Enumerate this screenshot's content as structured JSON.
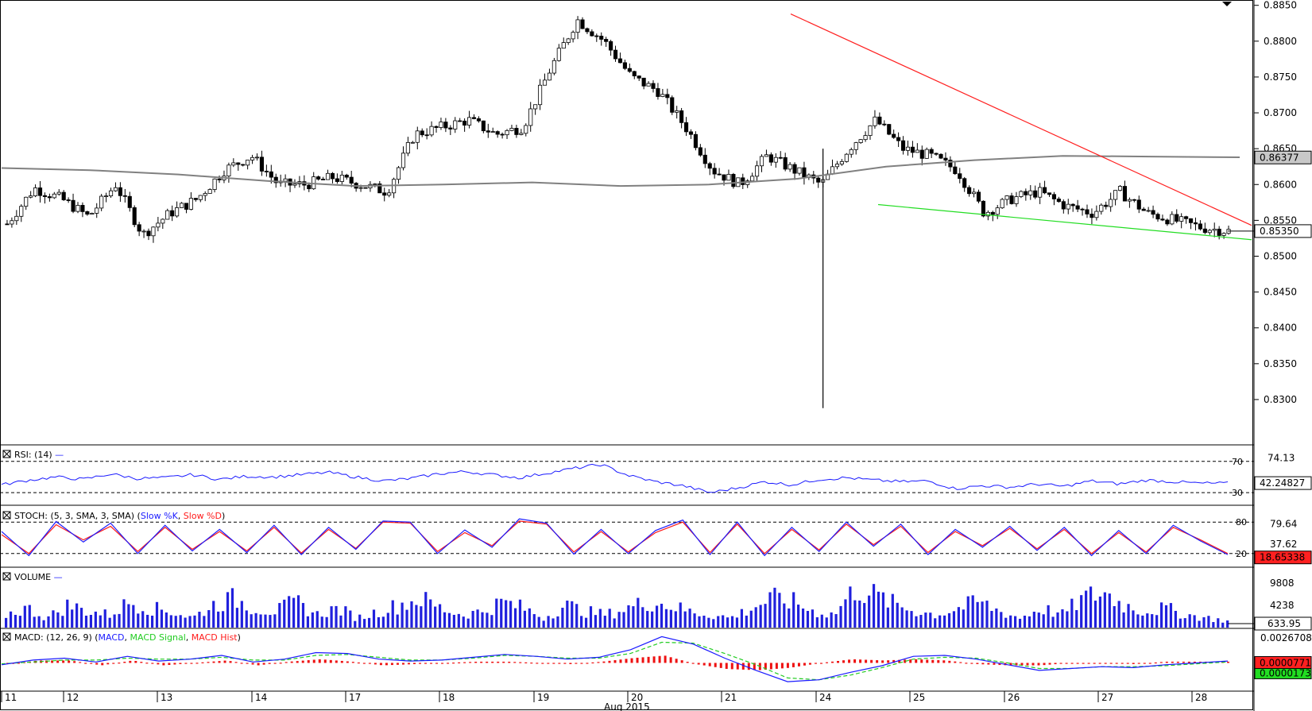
{
  "chart_data": {
    "type": "candlestick",
    "price_axis": {
      "ticks": [
        "0.8850",
        "0.8800",
        "0.8750",
        "0.8700",
        "0.8650",
        "0.8600",
        "0.8550",
        "0.8500",
        "0.8450",
        "0.8400",
        "0.8350",
        "0.8300"
      ],
      "range": [
        0.827,
        0.8853
      ],
      "current_price": "0.85350",
      "ma_label": "0.86377"
    },
    "series": [
      {
        "name": "moving-average",
        "values": [
          0.8623,
          0.862,
          0.8614,
          0.8605,
          0.8598,
          0.86,
          0.8603,
          0.8598,
          0.86,
          0.8608,
          0.8625,
          0.8634,
          0.864,
          0.8639,
          0.8638
        ]
      },
      {
        "name": "close",
        "values": [
          0.8545,
          0.8595,
          0.858,
          0.8555,
          0.86,
          0.853,
          0.856,
          0.858,
          0.862,
          0.864,
          0.86,
          0.86,
          0.861,
          0.86,
          0.859,
          0.867,
          0.868,
          0.869,
          0.867,
          0.868,
          0.876,
          0.883,
          0.88,
          0.875,
          0.873,
          0.868,
          0.862,
          0.86,
          0.864,
          0.862,
          0.86,
          0.865,
          0.869,
          0.865,
          0.864,
          0.862,
          0.856,
          0.858,
          0.859,
          0.857,
          0.856,
          0.859,
          0.856,
          0.855,
          0.854,
          0.8535
        ]
      },
      {
        "name": "resistance-line",
        "values": [
          0.8838,
          0.8543
        ]
      },
      {
        "name": "support-line",
        "values": [
          0.8572,
          0.8523
        ]
      }
    ],
    "x_axis": {
      "labels": [
        "11",
        "12",
        "13",
        "14",
        "17",
        "18",
        "19",
        "20",
        "21",
        "24",
        "25",
        "26",
        "27",
        "28"
      ],
      "month_label": "Aug 2015"
    },
    "panels": {
      "rsi": {
        "title": "RSI: (14)",
        "levels": [
          "70",
          "30"
        ],
        "axis_value": "74.13",
        "current": "42.24827",
        "values": [
          40,
          46,
          50,
          47,
          54,
          48,
          49,
          53,
          47,
          51,
          50,
          53,
          56,
          50,
          45,
          48,
          54,
          57,
          53,
          49,
          55,
          61,
          66,
          52,
          44,
          39,
          30,
          36,
          44,
          40,
          47,
          49,
          46,
          44,
          45,
          35,
          39,
          37,
          41,
          38,
          45,
          41,
          46,
          44,
          42,
          42
        ]
      },
      "stoch": {
        "title": "STOCH: (5, 3, SMA, 3, SMA)",
        "legend": [
          "Slow %K",
          "Slow %D"
        ],
        "levels": [
          "80",
          "20"
        ],
        "axis_values": [
          "79.64",
          "37.62"
        ],
        "current": "18.65338",
        "k_values": [
          62,
          16,
          81,
          42,
          78,
          20,
          74,
          25,
          66,
          22,
          74,
          18,
          70,
          28,
          82,
          80,
          20,
          65,
          32,
          86,
          78,
          19,
          66,
          20,
          64,
          84,
          18,
          80,
          16,
          70,
          24,
          80,
          34,
          76,
          18,
          66,
          32,
          72,
          26,
          70,
          16,
          64,
          20,
          74,
          44,
          18
        ],
        "d_values": [
          56,
          20,
          75,
          46,
          72,
          24,
          70,
          28,
          62,
          25,
          70,
          21,
          66,
          30,
          80,
          78,
          24,
          60,
          35,
          82,
          76,
          23,
          62,
          23,
          60,
          80,
          22,
          76,
          20,
          66,
          27,
          76,
          37,
          72,
          22,
          62,
          35,
          68,
          29,
          66,
          20,
          60,
          23,
          70,
          46,
          20
        ]
      },
      "volume": {
        "title": "VOLUME",
        "axis_values": [
          "9808",
          "4238"
        ],
        "current": "633.95",
        "values": [
          4,
          6,
          3,
          7,
          5,
          4,
          8,
          6,
          5,
          3,
          7,
          9,
          6,
          5,
          8,
          4,
          6,
          3,
          5,
          7,
          9,
          6,
          4,
          5,
          8,
          6,
          3,
          7,
          5,
          4,
          6,
          8,
          7,
          5,
          4,
          3,
          6,
          9,
          8,
          5,
          4,
          12,
          10,
          7,
          5,
          4,
          6,
          8,
          5,
          3,
          6,
          4,
          9,
          11,
          7,
          5,
          6,
          4,
          3,
          2
        ]
      },
      "macd": {
        "title": "MACD: (12, 26, 9)",
        "legend": [
          "MACD",
          "MACD Signal",
          "MACD Hist"
        ],
        "current_hist": "0.0000771",
        "current_macd": "0.0000173",
        "axis_value": "0.0026708",
        "macd_values": [
          -0.0002,
          0.0003,
          0.0005,
          0.0001,
          0.0007,
          0.0002,
          0.0004,
          0.0008,
          0.0001,
          0.0004,
          0.0011,
          0.001,
          0.0004,
          0.0002,
          0.0003,
          0.0006,
          0.0009,
          0.0007,
          0.0004,
          0.0006,
          0.0014,
          0.0028,
          0.002,
          0.0005,
          -0.0008,
          -0.002,
          -0.0018,
          -0.001,
          -0.0003,
          0.0007,
          0.0008,
          0.0004,
          -0.0002,
          -0.0008,
          -0.0006,
          -0.0004,
          -0.0005,
          -0.0002,
          0.0,
          0.0002
        ],
        "signal_values": [
          -0.0001,
          0.0001,
          0.0003,
          0.0003,
          0.0005,
          0.0004,
          0.0004,
          0.0006,
          0.0003,
          0.0003,
          0.0008,
          0.0009,
          0.0006,
          0.0003,
          0.0003,
          0.0005,
          0.0008,
          0.0007,
          0.0005,
          0.0005,
          0.001,
          0.0022,
          0.0021,
          0.001,
          -0.0002,
          -0.0016,
          -0.0018,
          -0.0013,
          -0.0005,
          0.0004,
          0.0006,
          0.0005,
          0.0,
          -0.0006,
          -0.0006,
          -0.0004,
          -0.0004,
          -0.0003,
          -0.0001,
          0.0001
        ]
      }
    }
  }
}
